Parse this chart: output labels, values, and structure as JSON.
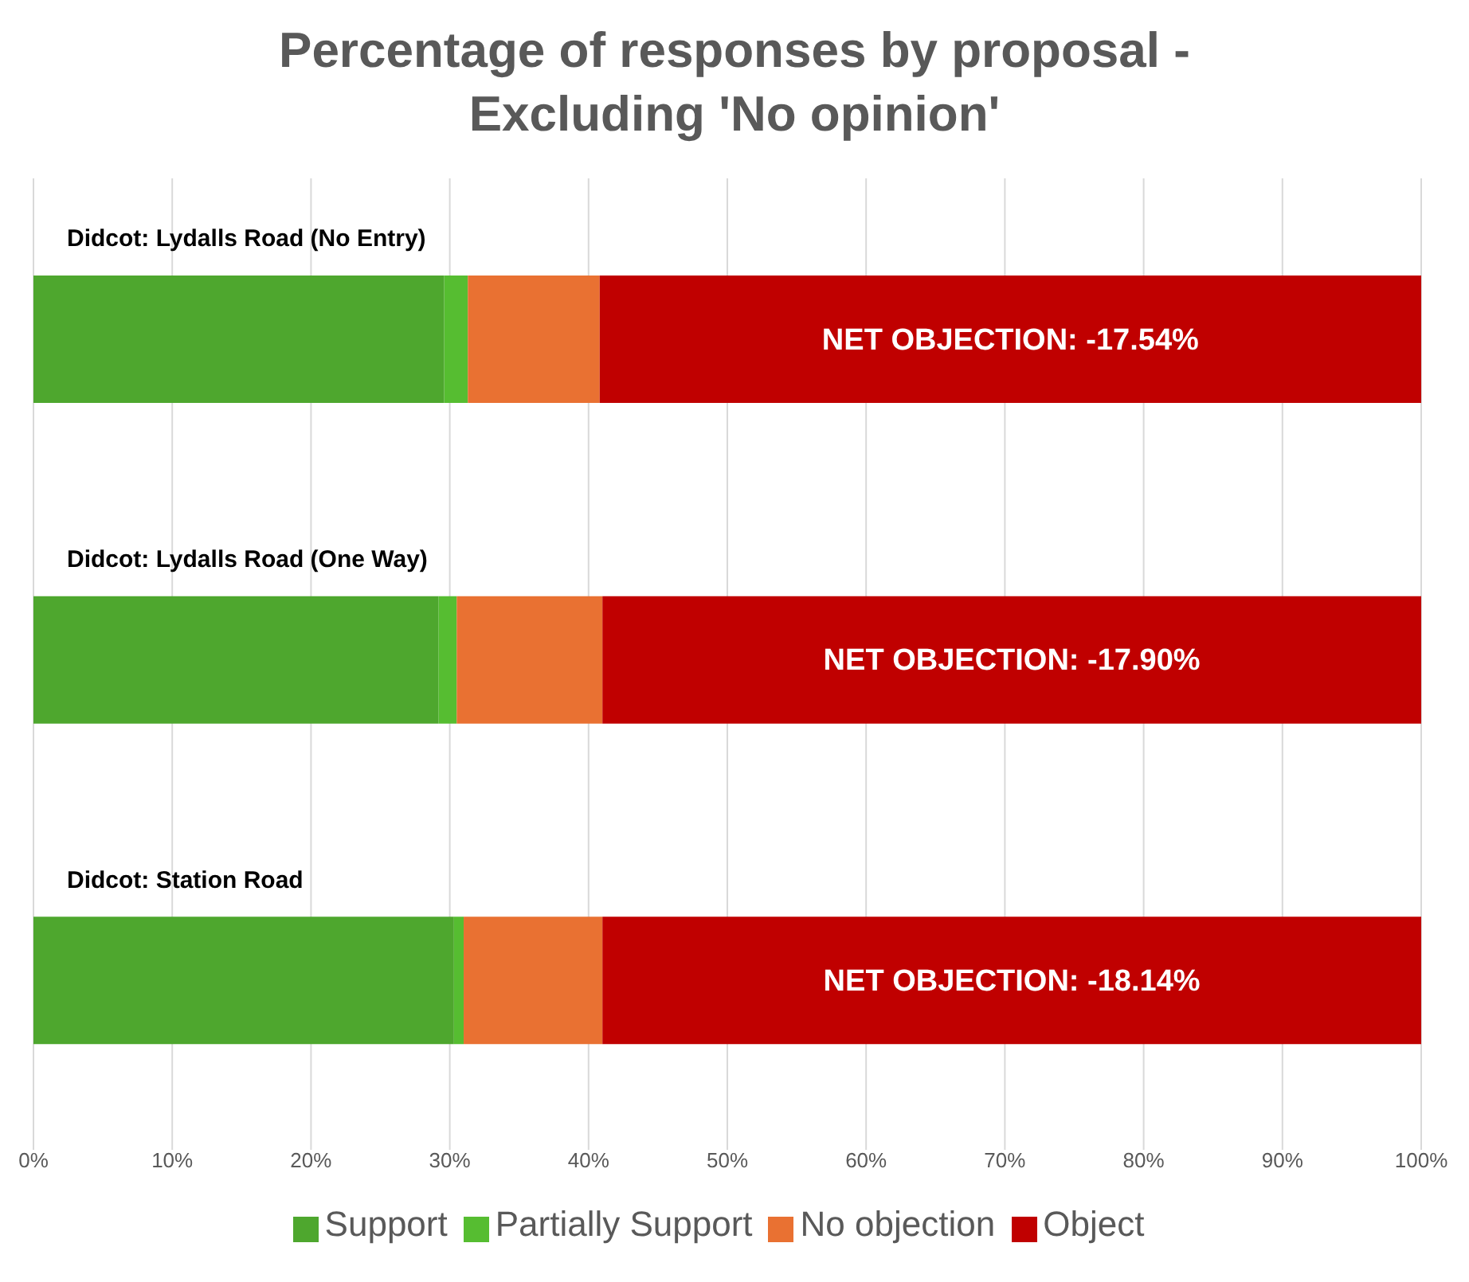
{
  "chart_data": {
    "type": "bar",
    "orientation": "horizontal",
    "stacked": true,
    "title": "Percentage of responses by proposal - Excluding 'No opinion'",
    "categories": [
      "Didcot: Lydalls Road (No Entry)",
      "Didcot: Lydalls Road (One Way)",
      "Didcot: Station Road"
    ],
    "series": [
      {
        "name": "Support",
        "color": "#4ea72e",
        "values": [
          29.6,
          29.2,
          30.3
        ]
      },
      {
        "name": "Partially Support",
        "color": "#56bd31",
        "values": [
          1.7,
          1.3,
          0.7
        ]
      },
      {
        "name": "No objection",
        "color": "#e97132",
        "values": [
          9.5,
          10.5,
          10.0
        ]
      },
      {
        "name": "Object",
        "color": "#c00000",
        "values": [
          59.2,
          59.0,
          59.0
        ]
      }
    ],
    "xlim": [
      0,
      100
    ],
    "xticks": [
      {
        "value": 0,
        "label": "0%"
      },
      {
        "value": 10,
        "label": "10%"
      },
      {
        "value": 20,
        "label": "20%"
      },
      {
        "value": 30,
        "label": "30%"
      },
      {
        "value": 40,
        "label": "40%"
      },
      {
        "value": 50,
        "label": "50%"
      },
      {
        "value": 60,
        "label": "60%"
      },
      {
        "value": 70,
        "label": "70%"
      },
      {
        "value": 80,
        "label": "80%"
      },
      {
        "value": 90,
        "label": "90%"
      },
      {
        "value": 100,
        "label": "100%"
      }
    ],
    "annotations": [
      "NET OBJECTION: -17.54%",
      "NET OBJECTION: -17.90%",
      "NET OBJECTION: -18.14%"
    ],
    "grid": "x",
    "legend": "bottom"
  }
}
